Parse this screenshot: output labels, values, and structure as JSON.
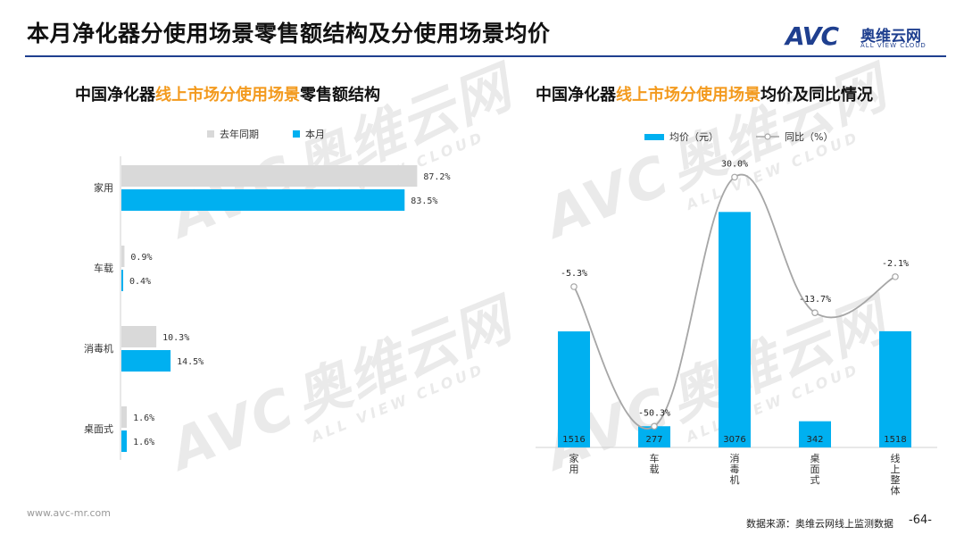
{
  "slide": {
    "title": "本月净化器分使用场景零售额结构及分使用场景均价",
    "logo_cn": "奥维云网",
    "logo_en": "ALL VIEW CLOUD",
    "logo_mark": "AVC",
    "footer_url": "www.avc-mr.com",
    "footer_source": "数据来源：奥维云网线上监测数据",
    "page_number": "-64-",
    "accent_color": "#f39a1e",
    "brand_color": "#1f3f8f"
  },
  "left_panel": {
    "title_prefix": "中国净化器",
    "title_highlight": "线上市场分使用场景",
    "title_suffix": "零售额结构"
  },
  "right_panel": {
    "title_prefix": "中国净化器",
    "title_highlight": "线上市场分使用场景",
    "title_suffix": "均价及同比情况"
  },
  "chart_data": [
    {
      "type": "bar",
      "orientation": "horizontal",
      "categories": [
        "家用",
        "车载",
        "消毒机",
        "桌面式"
      ],
      "series": [
        {
          "name": "去年同期",
          "values": [
            87.2,
            0.9,
            10.3,
            1.6
          ],
          "labels": [
            "87.2%",
            "0.9%",
            "10.3%",
            "1.6%"
          ],
          "color": "#d9d9d9"
        },
        {
          "name": "本月",
          "values": [
            83.5,
            0.4,
            14.5,
            1.6
          ],
          "labels": [
            "83.5%",
            "0.4%",
            "14.5%",
            "1.6%"
          ],
          "color": "#00b0f0"
        }
      ],
      "xlim": [
        0,
        100
      ],
      "legend_position": "top",
      "grid": false
    },
    {
      "type": "bar+line",
      "categories": [
        "家用",
        "车载",
        "消毒机",
        "桌面式",
        "线上整体"
      ],
      "bars": {
        "name": "均价（元）",
        "values": [
          1516,
          277,
          3076,
          342,
          1518
        ],
        "color": "#00b0f0"
      },
      "line": {
        "name": "同比（%）",
        "values": [
          -5.3,
          -50.3,
          30.0,
          -13.7,
          -2.1
        ],
        "labels": [
          "-5.3%",
          "-50.3%",
          "30.0%",
          "-13.7%",
          "-2.1%"
        ],
        "color": "#a6a6a6"
      },
      "bar_ylim": [
        0,
        3500
      ],
      "line_ylim": [
        -60,
        35
      ],
      "legend_position": "top",
      "grid": false
    }
  ]
}
